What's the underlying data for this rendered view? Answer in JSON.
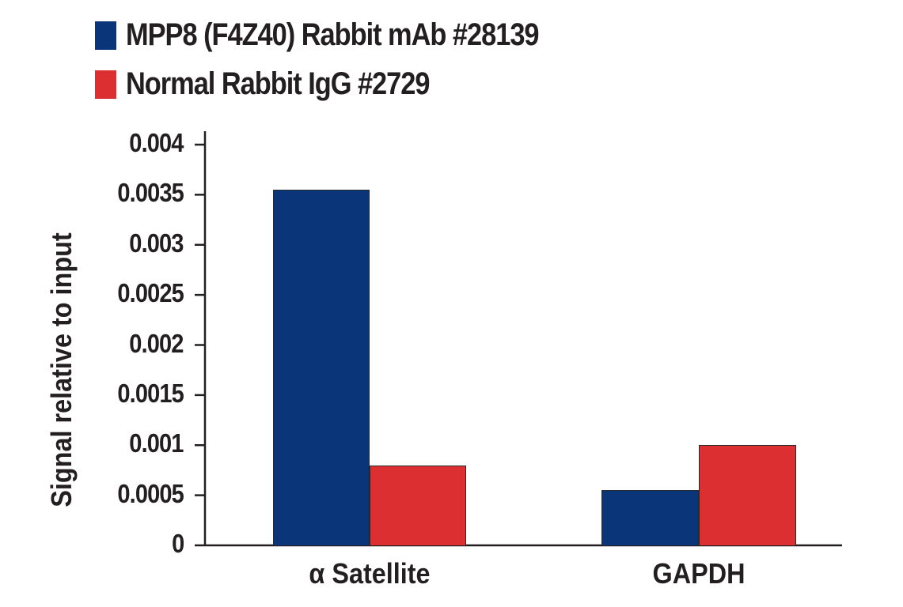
{
  "legend": [
    {
      "label": "MPP8 (F4Z40) Rabbit mAb #28139",
      "color": "#0a3679"
    },
    {
      "label": "Normal Rabbit IgG #2729",
      "color": "#dc2f32"
    }
  ],
  "axes": {
    "ylabel": "Signal relative to input",
    "yticks": [
      "0",
      "0.0005",
      "0.001",
      "0.0015",
      "0.002",
      "0.0025",
      "0.003",
      "0.0035",
      "0.004"
    ]
  },
  "categories": [
    "α Satellite",
    "GAPDH"
  ],
  "chart_data": {
    "type": "bar",
    "title": "",
    "xlabel": "",
    "ylabel": "Signal relative to input",
    "categories": [
      "α Satellite",
      "GAPDH"
    ],
    "series": [
      {
        "name": "MPP8 (F4Z40) Rabbit mAb #28139",
        "color": "#0a3679",
        "values": [
          0.00355,
          0.00055
        ]
      },
      {
        "name": "Normal Rabbit IgG #2729",
        "color": "#dc2f32",
        "values": [
          0.0008,
          0.001
        ]
      }
    ],
    "ylim": [
      0,
      0.004
    ],
    "yticks": [
      0,
      0.0005,
      0.001,
      0.0015,
      0.002,
      0.0025,
      0.003,
      0.0035,
      0.004
    ],
    "grid": false,
    "legend_position": "top-left"
  }
}
